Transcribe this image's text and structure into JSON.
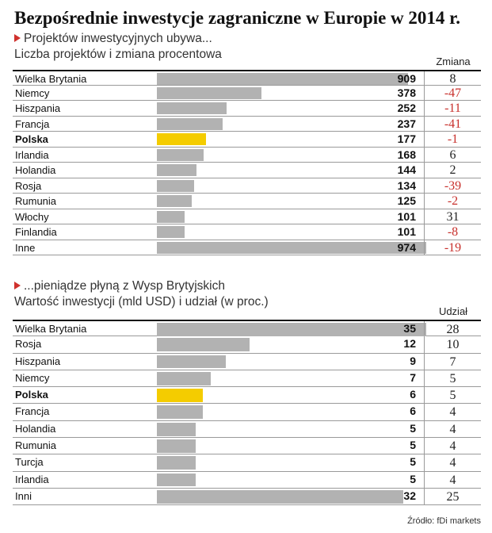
{
  "title": "Bezpośrednie inwestycje zagraniczne w Europie w 2014 r.",
  "source": "Źródło: fDi markets",
  "chart_data": [
    {
      "type": "bar",
      "section_title": "Projektów inwestycyjnych ubywa...",
      "subtitle": "Liczba projektów i zmiana procentowa",
      "right_column_title": "Zmiana",
      "categories": [
        "Wielka Brytania",
        "Niemcy",
        "Hiszpania",
        "Francja",
        "Polska",
        "Irlandia",
        "Holandia",
        "Rosja",
        "Rumunia",
        "Włochy",
        "Finlandia",
        "Inne"
      ],
      "values": [
        909,
        378,
        252,
        237,
        177,
        168,
        144,
        134,
        125,
        101,
        101,
        974
      ],
      "values_display": [
        "909",
        "378",
        "252",
        "237",
        "177",
        "168",
        "144",
        "134",
        "125",
        "101",
        "101",
        "974"
      ],
      "right_column": [
        "8",
        "-47",
        "-11",
        "-41",
        "-1",
        "6",
        "2",
        "-39",
        "-2",
        "31",
        "-8",
        "-19"
      ],
      "highlight": "Polska",
      "xlim": [
        0,
        974
      ],
      "colors": {
        "bar": "#b2b2b2",
        "highlight": "#f4cc00",
        "negative": "#c8302c"
      }
    },
    {
      "type": "bar",
      "section_title": "...pieniądze płyną z Wysp Brytyjskich",
      "subtitle": "Wartość inwestycji (mld USD) i udział (w proc.)",
      "right_column_title": "Udział",
      "categories": [
        "Wielka Brytania",
        "Rosja",
        "Hiszpania",
        "Niemcy",
        "Polska",
        "Francja",
        "Holandia",
        "Rumunia",
        "Turcja",
        "Irlandia",
        "Inni"
      ],
      "values": [
        35,
        12,
        9,
        7,
        6,
        6,
        5,
        5,
        5,
        5,
        32
      ],
      "values_display": [
        "35",
        "12",
        "9",
        "7",
        "6",
        "6",
        "5",
        "5",
        "5",
        "5",
        "32"
      ],
      "right_column": [
        "28",
        "10",
        "7",
        "5",
        "5",
        "4",
        "4",
        "4",
        "4",
        "4",
        "25"
      ],
      "highlight": "Polska",
      "xlim": [
        0,
        35
      ],
      "colors": {
        "bar": "#b2b2b2",
        "highlight": "#f4cc00",
        "negative": "#c8302c"
      }
    }
  ]
}
